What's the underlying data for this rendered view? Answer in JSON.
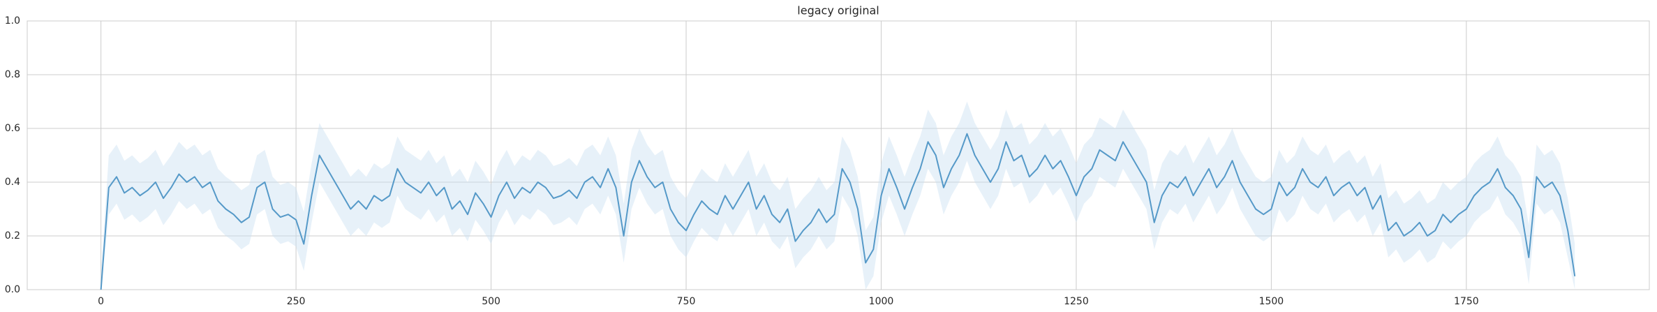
{
  "chart_data": {
    "type": "line",
    "title": "legacy original",
    "x": [
      0,
      10,
      20,
      30,
      40,
      50,
      60,
      70,
      80,
      90,
      100,
      110,
      120,
      130,
      140,
      150,
      160,
      170,
      180,
      190,
      200,
      210,
      220,
      230,
      240,
      250,
      260,
      270,
      280,
      290,
      300,
      310,
      320,
      330,
      340,
      350,
      360,
      370,
      380,
      390,
      400,
      410,
      420,
      430,
      440,
      450,
      460,
      470,
      480,
      490,
      500,
      510,
      520,
      530,
      540,
      550,
      560,
      570,
      580,
      590,
      600,
      610,
      620,
      630,
      640,
      650,
      660,
      670,
      680,
      690,
      700,
      710,
      720,
      730,
      740,
      750,
      760,
      770,
      780,
      790,
      800,
      810,
      820,
      830,
      840,
      850,
      860,
      870,
      880,
      890,
      900,
      910,
      920,
      930,
      940,
      950,
      960,
      970,
      980,
      990,
      1000,
      1010,
      1020,
      1030,
      1040,
      1050,
      1060,
      1070,
      1080,
      1090,
      1100,
      1110,
      1120,
      1130,
      1140,
      1150,
      1160,
      1170,
      1180,
      1190,
      1200,
      1210,
      1220,
      1230,
      1240,
      1250,
      1260,
      1270,
      1280,
      1290,
      1300,
      1310,
      1320,
      1330,
      1340,
      1350,
      1360,
      1370,
      1380,
      1390,
      1400,
      1410,
      1420,
      1430,
      1440,
      1450,
      1460,
      1470,
      1480,
      1490,
      1500,
      1510,
      1520,
      1530,
      1540,
      1550,
      1560,
      1570,
      1580,
      1590,
      1600,
      1610,
      1620,
      1630,
      1640,
      1650,
      1660,
      1670,
      1680,
      1690,
      1700,
      1710,
      1720,
      1730,
      1740,
      1750,
      1760,
      1770,
      1780,
      1790,
      1800,
      1810,
      1820,
      1830,
      1840,
      1850,
      1860,
      1870,
      1880,
      1889
    ],
    "series": [
      {
        "color": "#5599c8",
        "band_color": "#c9dff1",
        "values": [
          0,
          0.38,
          0.42,
          0.36,
          0.38,
          0.35,
          0.37,
          0.4,
          0.34,
          0.38,
          0.43,
          0.4,
          0.42,
          0.38,
          0.4,
          0.33,
          0.3,
          0.28,
          0.25,
          0.27,
          0.38,
          0.4,
          0.3,
          0.27,
          0.28,
          0.26,
          0.17,
          0.35,
          0.5,
          0.45,
          0.4,
          0.35,
          0.3,
          0.33,
          0.3,
          0.35,
          0.33,
          0.35,
          0.45,
          0.4,
          0.38,
          0.36,
          0.4,
          0.35,
          0.38,
          0.3,
          0.33,
          0.28,
          0.36,
          0.32,
          0.27,
          0.35,
          0.4,
          0.34,
          0.38,
          0.36,
          0.4,
          0.38,
          0.34,
          0.35,
          0.37,
          0.34,
          0.4,
          0.42,
          0.38,
          0.45,
          0.38,
          0.2,
          0.4,
          0.48,
          0.42,
          0.38,
          0.4,
          0.3,
          0.25,
          0.22,
          0.28,
          0.33,
          0.3,
          0.28,
          0.35,
          0.3,
          0.35,
          0.4,
          0.3,
          0.35,
          0.28,
          0.25,
          0.3,
          0.18,
          0.22,
          0.25,
          0.3,
          0.25,
          0.28,
          0.45,
          0.4,
          0.3,
          0.1,
          0.15,
          0.35,
          0.45,
          0.38,
          0.3,
          0.38,
          0.45,
          0.55,
          0.5,
          0.38,
          0.45,
          0.5,
          0.58,
          0.5,
          0.45,
          0.4,
          0.45,
          0.55,
          0.48,
          0.5,
          0.42,
          0.45,
          0.5,
          0.45,
          0.48,
          0.42,
          0.35,
          0.42,
          0.45,
          0.52,
          0.5,
          0.48,
          0.55,
          0.5,
          0.45,
          0.4,
          0.25,
          0.35,
          0.4,
          0.38,
          0.42,
          0.35,
          0.4,
          0.45,
          0.38,
          0.42,
          0.48,
          0.4,
          0.35,
          0.3,
          0.28,
          0.3,
          0.4,
          0.35,
          0.38,
          0.45,
          0.4,
          0.38,
          0.42,
          0.35,
          0.38,
          0.4,
          0.35,
          0.38,
          0.3,
          0.35,
          0.22,
          0.25,
          0.2,
          0.22,
          0.25,
          0.2,
          0.22,
          0.28,
          0.25,
          0.28,
          0.3,
          0.35,
          0.38,
          0.4,
          0.45,
          0.38,
          0.35,
          0.3,
          0.12,
          0.42,
          0.38,
          0.4,
          0.35,
          0.22,
          0.05
        ],
        "lower": [
          0,
          0.28,
          0.32,
          0.26,
          0.28,
          0.25,
          0.27,
          0.3,
          0.24,
          0.28,
          0.33,
          0.3,
          0.32,
          0.28,
          0.3,
          0.23,
          0.2,
          0.18,
          0.15,
          0.17,
          0.28,
          0.3,
          0.2,
          0.17,
          0.18,
          0.16,
          0.07,
          0.25,
          0.4,
          0.35,
          0.3,
          0.25,
          0.2,
          0.23,
          0.2,
          0.25,
          0.23,
          0.25,
          0.35,
          0.3,
          0.28,
          0.26,
          0.3,
          0.25,
          0.28,
          0.2,
          0.23,
          0.18,
          0.26,
          0.22,
          0.17,
          0.25,
          0.3,
          0.24,
          0.28,
          0.26,
          0.3,
          0.28,
          0.24,
          0.25,
          0.27,
          0.24,
          0.3,
          0.32,
          0.28,
          0.35,
          0.28,
          0.1,
          0.3,
          0.38,
          0.32,
          0.28,
          0.3,
          0.2,
          0.15,
          0.12,
          0.18,
          0.23,
          0.2,
          0.18,
          0.25,
          0.2,
          0.25,
          0.3,
          0.2,
          0.25,
          0.18,
          0.15,
          0.2,
          0.08,
          0.12,
          0.15,
          0.2,
          0.15,
          0.18,
          0.35,
          0.3,
          0.2,
          0,
          0.05,
          0.25,
          0.35,
          0.28,
          0.2,
          0.28,
          0.35,
          0.45,
          0.4,
          0.28,
          0.35,
          0.4,
          0.48,
          0.4,
          0.35,
          0.3,
          0.35,
          0.45,
          0.38,
          0.4,
          0.32,
          0.35,
          0.4,
          0.35,
          0.38,
          0.32,
          0.25,
          0.32,
          0.35,
          0.42,
          0.4,
          0.38,
          0.45,
          0.4,
          0.35,
          0.3,
          0.15,
          0.25,
          0.3,
          0.28,
          0.32,
          0.25,
          0.3,
          0.35,
          0.28,
          0.32,
          0.38,
          0.3,
          0.25,
          0.2,
          0.18,
          0.2,
          0.3,
          0.25,
          0.28,
          0.35,
          0.3,
          0.28,
          0.32,
          0.25,
          0.28,
          0.3,
          0.25,
          0.28,
          0.2,
          0.25,
          0.12,
          0.15,
          0.1,
          0.12,
          0.15,
          0.1,
          0.12,
          0.18,
          0.15,
          0.18,
          0.2,
          0.25,
          0.28,
          0.3,
          0.35,
          0.28,
          0.25,
          0.2,
          0.02,
          0.32,
          0.28,
          0.3,
          0.25,
          0.12,
          0
        ],
        "upper": [
          0.06,
          0.5,
          0.54,
          0.48,
          0.5,
          0.47,
          0.49,
          0.52,
          0.46,
          0.5,
          0.55,
          0.52,
          0.54,
          0.5,
          0.52,
          0.45,
          0.42,
          0.4,
          0.37,
          0.39,
          0.5,
          0.52,
          0.42,
          0.39,
          0.4,
          0.38,
          0.29,
          0.47,
          0.62,
          0.57,
          0.52,
          0.47,
          0.42,
          0.45,
          0.42,
          0.47,
          0.45,
          0.47,
          0.57,
          0.52,
          0.5,
          0.48,
          0.52,
          0.47,
          0.5,
          0.42,
          0.45,
          0.4,
          0.48,
          0.44,
          0.39,
          0.47,
          0.52,
          0.46,
          0.5,
          0.48,
          0.52,
          0.5,
          0.46,
          0.47,
          0.49,
          0.46,
          0.52,
          0.54,
          0.5,
          0.57,
          0.5,
          0.32,
          0.52,
          0.6,
          0.54,
          0.5,
          0.52,
          0.42,
          0.37,
          0.34,
          0.4,
          0.45,
          0.42,
          0.4,
          0.47,
          0.42,
          0.47,
          0.52,
          0.42,
          0.47,
          0.4,
          0.37,
          0.42,
          0.3,
          0.34,
          0.37,
          0.42,
          0.37,
          0.4,
          0.57,
          0.52,
          0.42,
          0.22,
          0.27,
          0.47,
          0.57,
          0.5,
          0.42,
          0.5,
          0.57,
          0.67,
          0.62,
          0.5,
          0.57,
          0.62,
          0.7,
          0.62,
          0.57,
          0.52,
          0.57,
          0.67,
          0.6,
          0.62,
          0.54,
          0.57,
          0.62,
          0.57,
          0.6,
          0.54,
          0.47,
          0.54,
          0.57,
          0.64,
          0.62,
          0.6,
          0.67,
          0.62,
          0.57,
          0.52,
          0.37,
          0.47,
          0.52,
          0.5,
          0.54,
          0.47,
          0.52,
          0.57,
          0.5,
          0.54,
          0.6,
          0.52,
          0.47,
          0.42,
          0.4,
          0.42,
          0.52,
          0.47,
          0.5,
          0.57,
          0.52,
          0.5,
          0.54,
          0.47,
          0.5,
          0.52,
          0.47,
          0.5,
          0.42,
          0.47,
          0.34,
          0.37,
          0.32,
          0.34,
          0.37,
          0.32,
          0.34,
          0.4,
          0.37,
          0.4,
          0.42,
          0.47,
          0.5,
          0.52,
          0.57,
          0.5,
          0.47,
          0.42,
          0.24,
          0.54,
          0.5,
          0.52,
          0.47,
          0.34,
          0.17
        ]
      }
    ],
    "xlim": [
      -94.5,
      1984.5
    ],
    "ylim": [
      0,
      1
    ],
    "xticks": [
      0,
      250,
      500,
      750,
      1000,
      1250,
      1500,
      1750
    ],
    "yticks": [
      {
        "value": 0,
        "label": "0.0"
      },
      {
        "value": 0.2,
        "label": "0.2"
      },
      {
        "value": 0.4,
        "label": "0.4"
      },
      {
        "value": 0.6,
        "label": "0.6"
      },
      {
        "value": 0.8,
        "label": "0.8"
      },
      {
        "value": 1,
        "label": "1.0"
      }
    ],
    "grid": true
  }
}
